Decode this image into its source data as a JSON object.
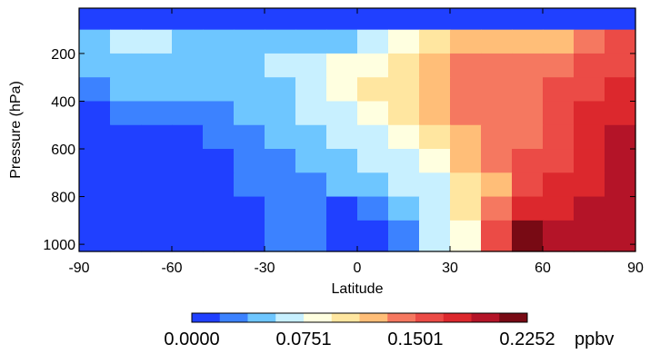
{
  "chart_data": {
    "type": "heatmap",
    "title": "",
    "xlabel": "Latitude",
    "ylabel": "Pressure (hPa)",
    "xlim": [
      -90,
      90
    ],
    "ylim": [
      1030,
      10
    ],
    "x_ticks": [
      -90,
      -60,
      -30,
      0,
      30,
      60,
      90
    ],
    "y_ticks": [
      200,
      400,
      600,
      800,
      1000
    ],
    "grid": false,
    "colorbar": {
      "unit": "ppbv",
      "min": 0.0,
      "max": 0.2252,
      "tick_values": [
        0.0,
        0.0751,
        0.1501,
        0.2252
      ],
      "tick_labels": [
        "0.0000",
        "0.0751",
        "0.1501",
        "0.2252"
      ],
      "levels": 12,
      "colors": [
        "#2040ff",
        "#3c82ff",
        "#6ec6ff",
        "#c8f0ff",
        "#ffffe0",
        "#ffe6a0",
        "#ffbe78",
        "#f57860",
        "#eb4b46",
        "#dc282d",
        "#b41428",
        "#780a14"
      ]
    },
    "grid_x": [
      -90,
      -80,
      -70,
      -60,
      -50,
      -40,
      -30,
      -20,
      -10,
      0,
      10,
      20,
      30,
      40,
      50,
      60,
      70,
      80,
      90
    ],
    "grid_p": [
      10,
      100,
      200,
      300,
      400,
      500,
      600,
      700,
      800,
      900,
      1030
    ],
    "levels": [
      [
        0,
        0,
        0,
        0,
        0,
        0,
        0,
        0,
        0,
        0,
        0,
        0,
        0,
        0,
        0,
        0,
        0,
        0
      ],
      [
        2,
        3,
        3,
        2,
        2,
        2,
        2,
        2,
        2,
        3,
        4,
        5,
        6,
        6,
        6,
        6,
        7,
        8
      ],
      [
        2,
        2,
        2,
        2,
        2,
        2,
        3,
        3,
        4,
        4,
        5,
        6,
        7,
        7,
        7,
        7,
        8,
        8
      ],
      [
        1,
        2,
        2,
        2,
        2,
        2,
        2,
        3,
        4,
        5,
        5,
        6,
        7,
        7,
        7,
        8,
        8,
        9
      ],
      [
        0,
        1,
        1,
        1,
        1,
        2,
        2,
        3,
        3,
        4,
        5,
        6,
        7,
        7,
        7,
        8,
        9,
        9
      ],
      [
        0,
        0,
        0,
        0,
        1,
        1,
        2,
        2,
        3,
        3,
        4,
        5,
        6,
        7,
        7,
        8,
        9,
        10
      ],
      [
        0,
        0,
        0,
        0,
        0,
        1,
        1,
        2,
        2,
        3,
        3,
        4,
        6,
        7,
        8,
        8,
        9,
        10
      ],
      [
        0,
        0,
        0,
        0,
        0,
        1,
        1,
        1,
        2,
        2,
        3,
        3,
        5,
        6,
        8,
        9,
        9,
        10
      ],
      [
        0,
        0,
        0,
        0,
        0,
        0,
        1,
        1,
        0,
        1,
        2,
        3,
        5,
        7,
        9,
        9,
        10,
        10
      ],
      [
        0,
        0,
        0,
        0,
        0,
        0,
        1,
        1,
        0,
        0,
        1,
        3,
        4,
        8,
        11,
        10,
        10,
        10
      ]
    ]
  }
}
